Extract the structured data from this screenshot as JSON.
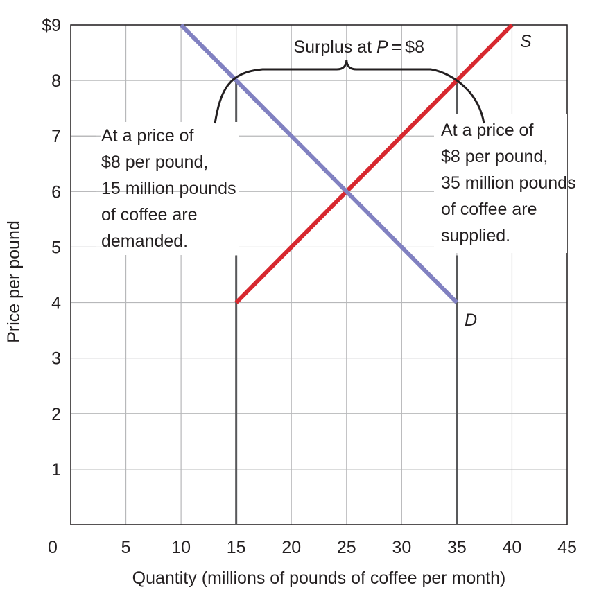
{
  "chart_data": {
    "type": "line",
    "title": "",
    "xlabel": "Quantity (millions of pounds of coffee per month)",
    "ylabel": "Price per pound",
    "xlim": [
      0,
      45
    ],
    "ylim": [
      0,
      9
    ],
    "x_ticks": [
      "0",
      "5",
      "10",
      "15",
      "20",
      "25",
      "30",
      "35",
      "40",
      "45"
    ],
    "y_ticks": [
      "",
      "1",
      "2",
      "3",
      "4",
      "5",
      "6",
      "7",
      "8",
      "$9"
    ],
    "grid": true,
    "series": [
      {
        "name": "S",
        "color": "#d7282f",
        "points": [
          [
            15,
            4
          ],
          [
            40,
            9
          ]
        ]
      },
      {
        "name": "D",
        "color": "#8181c1",
        "points": [
          [
            10,
            9
          ],
          [
            35,
            4
          ]
        ]
      }
    ],
    "reference_lines_x": [
      15,
      35
    ],
    "surplus_price": 8,
    "annotations": {
      "surplus": {
        "before": "Surplus at ",
        "italic": "P",
        "after": " = $8"
      },
      "left_note": [
        "At a price of",
        "$8 per pound,",
        "15 million pounds",
        "of coffee are",
        "demanded."
      ],
      "right_note": [
        "At a price of",
        "$8 per pound,",
        "35 million pounds",
        "of coffee are",
        "supplied."
      ]
    }
  }
}
